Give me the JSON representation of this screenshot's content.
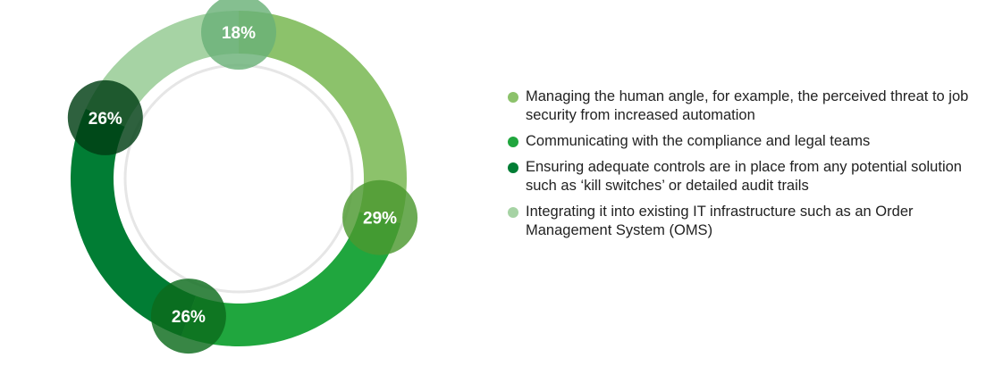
{
  "chart_data": {
    "type": "pie",
    "variant": "donut",
    "start": "top",
    "direction": "clockwise",
    "slices": [
      {
        "label": "Managing the human angle, for example, the perceived threat to job security from increased automation",
        "value": 29,
        "display": "29%",
        "color": "#8cc26b",
        "badge_color": "#4c982f"
      },
      {
        "label": "Communicating with the compliance and legal teams",
        "value": 26,
        "display": "26%",
        "color": "#20a63e",
        "badge_color": "#0c6b1c"
      },
      {
        "label": "Ensuring adequate controls are in place from any potential solution such as ‘kill switches’ or detailed audit trails",
        "value": 26,
        "display": "26%",
        "color": "#017d34",
        "badge_color": "#003e14"
      },
      {
        "label": "Integrating it into existing IT infrastructure such as an Order Management System (OMS)",
        "value": 18,
        "display": "18%",
        "color": "#a6d3a4",
        "badge_color": "#6ab177"
      }
    ],
    "legend_position": "right"
  }
}
